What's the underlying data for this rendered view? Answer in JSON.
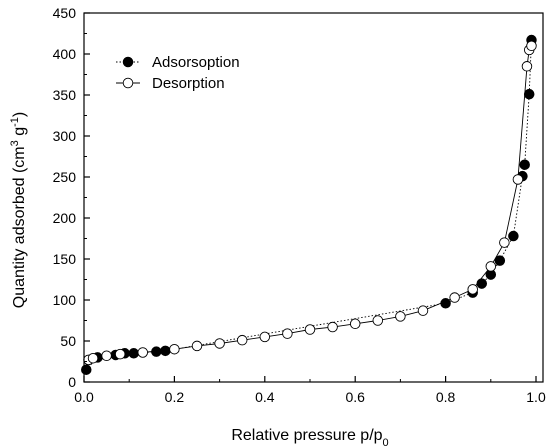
{
  "chart_data": {
    "type": "scatter",
    "xlabel": "Relative pressure p/p",
    "xlabel_sub": "0",
    "ylabel_parts": [
      "Quantity adsorbed (cm",
      "3",
      " g",
      "-1",
      ")"
    ],
    "xlim": [
      0.0,
      1.0
    ],
    "ylim": [
      0,
      450
    ],
    "x_ticks": [
      0.0,
      0.2,
      0.4,
      0.6,
      0.8,
      1.0
    ],
    "x_tick_labels": [
      "0.0",
      "0.2",
      "0.4",
      "0.6",
      "0.8",
      "1.0"
    ],
    "y_ticks": [
      0,
      50,
      100,
      150,
      200,
      250,
      300,
      350,
      400,
      450
    ],
    "y_tick_labels": [
      "0",
      "50",
      "100",
      "150",
      "200",
      "250",
      "300",
      "350",
      "400",
      "450"
    ],
    "grid": false,
    "legend_position": "top-left",
    "series": [
      {
        "name": "Adsorsoption",
        "marker": "filled-circle",
        "line": "dotted",
        "color": "#000000",
        "x": [
          0.005,
          0.03,
          0.07,
          0.09,
          0.11,
          0.16,
          0.18,
          0.8,
          0.86,
          0.88,
          0.9,
          0.92,
          0.95,
          0.97,
          0.975,
          0.985,
          0.99
        ],
        "y": [
          15,
          30,
          33,
          35,
          35,
          37,
          38,
          96,
          109,
          120,
          131,
          148,
          178,
          251,
          265,
          351,
          417
        ]
      },
      {
        "name": "Desorption",
        "marker": "open-circle",
        "line": "solid",
        "color": "#000000",
        "x": [
          0.01,
          0.02,
          0.05,
          0.08,
          0.13,
          0.2,
          0.25,
          0.3,
          0.35,
          0.4,
          0.45,
          0.5,
          0.55,
          0.6,
          0.65,
          0.7,
          0.75,
          0.82,
          0.86,
          0.9,
          0.93,
          0.96,
          0.98,
          0.985,
          0.99
        ],
        "y": [
          27,
          29,
          32,
          34,
          36,
          40,
          44,
          47,
          51,
          55,
          59,
          64,
          67,
          71,
          75,
          80,
          87,
          103,
          113,
          141,
          170,
          247,
          385,
          405,
          410
        ]
      }
    ]
  }
}
